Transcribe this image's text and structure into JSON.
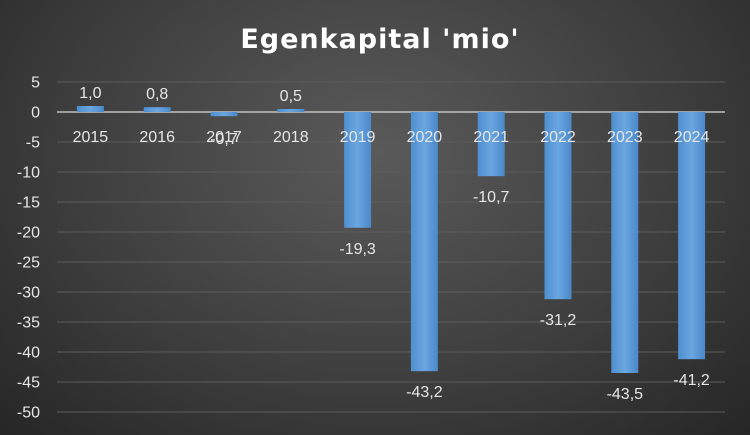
{
  "chart_data": {
    "type": "bar",
    "title": "Egenkapital 'mio'",
    "categories": [
      "2015",
      "2016",
      "2017",
      "2018",
      "2019",
      "2020",
      "2021",
      "2022",
      "2023",
      "2024"
    ],
    "values": [
      1.0,
      0.8,
      -0.7,
      0.5,
      -19.3,
      -43.2,
      -10.7,
      -31.2,
      -43.5,
      -41.2
    ],
    "value_labels": [
      "1,0",
      "0,8",
      "-0,7",
      "0,5",
      "-19,3",
      "-43,2",
      "-10,7",
      "-31,2",
      "-43,5",
      "-41,2"
    ],
    "y_ticks": [
      5,
      0,
      -5,
      -10,
      -15,
      -20,
      -25,
      -30,
      -35,
      -40,
      -45,
      -50
    ],
    "ylim": [
      -50,
      5
    ],
    "xlabel": "",
    "ylabel": "",
    "grid": true,
    "legend": "none",
    "bar_color": "#5b9bd5"
  }
}
